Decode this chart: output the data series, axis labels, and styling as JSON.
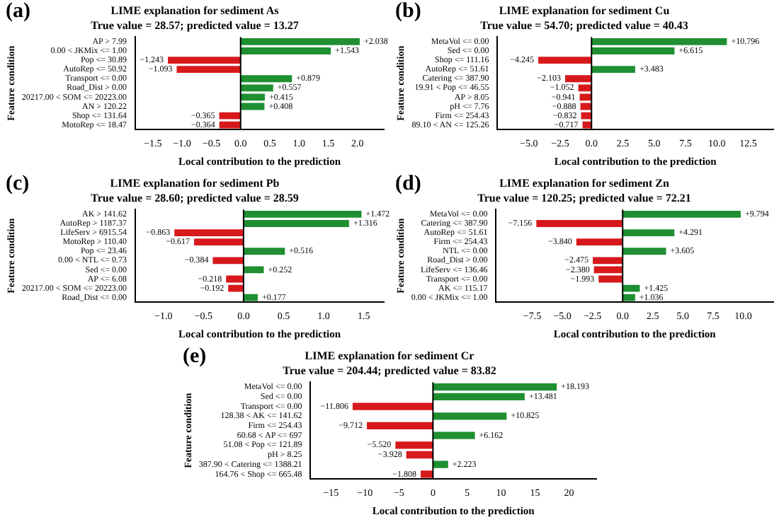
{
  "chart_data": [
    {
      "type": "bar",
      "orientation": "horizontal",
      "title": "LIME explanation for sediment As",
      "subtitle": "True value = 28.57; predicted value = 13.27",
      "xlabel": "Local contribution to the prediction",
      "ylabel": "Feature condition",
      "annotations": [
        "(a)"
      ],
      "categories": [
        "AP > 7.99",
        "0.00 < JKMix <= 1.00",
        "Pop <= 30.89",
        "AutoRep <= 50.92",
        "Transport <= 0.00",
        "Road_Dist > 0.00",
        "20217.00 < SOM <= 20223.00",
        "AN > 120.22",
        "Shop <= 131.64",
        "MotoRep <= 18.47"
      ],
      "values": [
        2.038,
        1.543,
        -1.243,
        -1.093,
        0.879,
        0.557,
        0.415,
        0.408,
        -0.365,
        -0.364
      ],
      "value_labels": [
        "+2.038",
        "+1.543",
        "−1.243",
        "−1.093",
        "+0.879",
        "+0.557",
        "+0.415",
        "+0.408",
        "−0.365",
        "−0.364"
      ],
      "colors": [
        "#1f8f32",
        "#1f8f32",
        "#d7191c",
        "#d7191c",
        "#1f8f32",
        "#1f8f32",
        "#1f8f32",
        "#1f8f32",
        "#d7191c",
        "#d7191c"
      ],
      "xlim": [
        -1.8,
        2.45
      ],
      "xticks": [
        {
          "value": -1.5,
          "label": "−1.5"
        },
        {
          "value": -1,
          "label": "−1.0"
        },
        {
          "value": -0.5,
          "label": "−0.5"
        },
        {
          "value": 0,
          "label": "0.0"
        },
        {
          "value": 0.5,
          "label": "0.5"
        },
        {
          "value": 1,
          "label": "1.0"
        },
        {
          "value": 1.5,
          "label": "1.5"
        },
        {
          "value": 2,
          "label": "2.0"
        }
      ],
      "ref_lines": [
        {
          "axis": "x",
          "value": 0,
          "color": "#000000"
        }
      ],
      "grid": false,
      "legend": false
    },
    {
      "type": "bar",
      "orientation": "horizontal",
      "title": "LIME explanation for sediment Cu",
      "subtitle": "True value = 54.70; predicted value = 40.43",
      "xlabel": "Local contribution to the prediction",
      "ylabel": "Feature condition",
      "annotations": [
        "(b)"
      ],
      "categories": [
        "MetaVol <= 0.00",
        "Sed <= 0.00",
        "Shop <= 111.16",
        "AutoRep <= 51.61",
        "Catering <= 387.90",
        "19.91 < Pop <= 46.55",
        "AP > 8.05",
        "pH <= 7.76",
        "Firm <= 254.43",
        "89.10 < AN <= 125.26"
      ],
      "values": [
        10.796,
        6.615,
        -4.245,
        3.483,
        -2.103,
        -1.052,
        -0.941,
        -0.888,
        -0.832,
        -0.717
      ],
      "value_labels": [
        "+10.796",
        "+6.615",
        "−4.245",
        "+3.483",
        "−2.103",
        "−1.052",
        "−0.941",
        "−0.888",
        "−0.832",
        "−0.717"
      ],
      "colors": [
        "#1f8f32",
        "#1f8f32",
        "#d7191c",
        "#1f8f32",
        "#d7191c",
        "#d7191c",
        "#d7191c",
        "#d7191c",
        "#d7191c",
        "#d7191c"
      ],
      "xlim": [
        -7.5,
        14.5
      ],
      "xticks": [
        {
          "value": -5,
          "label": "−5.0"
        },
        {
          "value": -2.5,
          "label": "−2.5"
        },
        {
          "value": 0,
          "label": "0.0"
        },
        {
          "value": 2.5,
          "label": "2.5"
        },
        {
          "value": 5,
          "label": "5.0"
        },
        {
          "value": 7.5,
          "label": "7.5"
        },
        {
          "value": 10,
          "label": "10.0"
        },
        {
          "value": 12.5,
          "label": "12.5"
        }
      ],
      "ref_lines": [
        {
          "axis": "x",
          "value": 0,
          "color": "#000000"
        }
      ],
      "grid": false,
      "legend": false
    },
    {
      "type": "bar",
      "orientation": "horizontal",
      "title": "LIME explanation for sediment Pb",
      "subtitle": "True value = 28.60; predicted value = 28.59",
      "xlabel": "Local contribution to the prediction",
      "ylabel": "Feature condition",
      "annotations": [
        "(c)"
      ],
      "categories": [
        "AK > 141.62",
        "AutoRep > 1187.37",
        "LifeServ > 6915.54",
        "MotoRep > 110.40",
        "Pop <= 23.46",
        "0.00 < NTL <= 0.73",
        "Sed <= 0.00",
        "AP <= 6.08",
        "20217.00 < SOM <= 20223.00",
        "Road_Dist <= 0.00"
      ],
      "values": [
        1.472,
        1.316,
        -0.863,
        -0.617,
        0.516,
        -0.384,
        0.252,
        -0.218,
        -0.192,
        0.177
      ],
      "value_labels": [
        "+1.472",
        "+1.316",
        "−0.863",
        "−0.617",
        "+0.516",
        "−0.384",
        "+0.252",
        "−0.218",
        "−0.192",
        "+0.177"
      ],
      "colors": [
        "#1f8f32",
        "#1f8f32",
        "#d7191c",
        "#d7191c",
        "#1f8f32",
        "#d7191c",
        "#1f8f32",
        "#d7191c",
        "#d7191c",
        "#1f8f32"
      ],
      "xlim": [
        -1.35,
        1.75
      ],
      "xticks": [
        {
          "value": -1,
          "label": "−1.0"
        },
        {
          "value": -0.5,
          "label": "−0.5"
        },
        {
          "value": 0,
          "label": "0.0"
        },
        {
          "value": 0.5,
          "label": "0.5"
        },
        {
          "value": 1,
          "label": "1.0"
        },
        {
          "value": 1.5,
          "label": "1.5"
        }
      ],
      "ref_lines": [
        {
          "axis": "x",
          "value": 0,
          "color": "#000000"
        }
      ],
      "grid": false,
      "legend": false
    },
    {
      "type": "bar",
      "orientation": "horizontal",
      "title": "LIME explanation for sediment Zn",
      "subtitle": "True value = 120.25; predicted value = 72.21",
      "xlabel": "Local contribution to the prediction",
      "ylabel": "Feature condition",
      "annotations": [
        "(d)"
      ],
      "categories": [
        "MetaVol <= 0.00",
        "Catering <= 387.90",
        "AutoRep <= 51.61",
        "Firm <= 254.43",
        "NTL <= 0.00",
        "Road_Dist > 0.00",
        "LifeServ <= 136.46",
        "Transport <= 0.00",
        "AK <= 115.17",
        "0.00 < JKMix <= 1.00"
      ],
      "values": [
        9.794,
        -7.156,
        4.291,
        -3.84,
        3.605,
        -2.475,
        -2.38,
        -1.993,
        1.425,
        1.036
      ],
      "value_labels": [
        "+9.794",
        "−7.156",
        "+4.291",
        "−3.840",
        "+3.605",
        "−2.475",
        "−2.380",
        "−1.993",
        "+1.425",
        "+1.036"
      ],
      "colors": [
        "#1f8f32",
        "#d7191c",
        "#1f8f32",
        "#d7191c",
        "#1f8f32",
        "#d7191c",
        "#d7191c",
        "#d7191c",
        "#1f8f32",
        "#1f8f32"
      ],
      "xlim": [
        -10.5,
        12.5
      ],
      "xticks": [
        {
          "value": -7.5,
          "label": "−7.5"
        },
        {
          "value": -5,
          "label": "−5.0"
        },
        {
          "value": -2.5,
          "label": "−2.5"
        },
        {
          "value": 0,
          "label": "0.0"
        },
        {
          "value": 2.5,
          "label": "2.5"
        },
        {
          "value": 5,
          "label": "5.0"
        },
        {
          "value": 7.5,
          "label": "7.5"
        },
        {
          "value": 10,
          "label": "10.0"
        }
      ],
      "ref_lines": [
        {
          "axis": "x",
          "value": 0,
          "color": "#000000"
        }
      ],
      "grid": false,
      "legend": false
    },
    {
      "type": "bar",
      "orientation": "horizontal",
      "title": "LIME explanation for sediment Cr",
      "subtitle": "True value = 204.44; predicted value = 83.82",
      "xlabel": "Local contribution to the prediction",
      "ylabel": "Feature condition",
      "annotations": [
        "(e)"
      ],
      "categories": [
        "MetaVol <= 0.00",
        "Sed <= 0.00",
        "Transport <= 0.00",
        "128.38 < AK <= 141.62",
        "Firm <= 254.43",
        "60.68 < AP <= 697",
        "51.08 < Pop <= 121.89",
        "pH > 8.25",
        "387.90 < Catering <= 1388.21",
        "164.76 < Shop <= 665.48"
      ],
      "values": [
        18.193,
        13.481,
        -11.806,
        10.825,
        -9.712,
        6.162,
        -5.52,
        -3.928,
        2.223,
        -1.808
      ],
      "value_labels": [
        "+18.193",
        "+13.481",
        "−11.806",
        "+10.825",
        "−9.712",
        "+6.162",
        "−5.520",
        "−3.928",
        "+2.223",
        "−1.808"
      ],
      "colors": [
        "#1f8f32",
        "#1f8f32",
        "#d7191c",
        "#1f8f32",
        "#d7191c",
        "#1f8f32",
        "#d7191c",
        "#d7191c",
        "#1f8f32",
        "#d7191c"
      ],
      "xlim": [
        -18,
        24
      ],
      "xticks": [
        {
          "value": -15,
          "label": "−15"
        },
        {
          "value": -10,
          "label": "−10"
        },
        {
          "value": -5,
          "label": "−5"
        },
        {
          "value": 0,
          "label": "0"
        },
        {
          "value": 5,
          "label": "5"
        },
        {
          "value": 10,
          "label": "10"
        },
        {
          "value": 15,
          "label": "15"
        },
        {
          "value": 20,
          "label": "20"
        }
      ],
      "ref_lines": [
        {
          "axis": "x",
          "value": 0,
          "color": "#000000"
        }
      ],
      "grid": false,
      "legend": false
    }
  ]
}
